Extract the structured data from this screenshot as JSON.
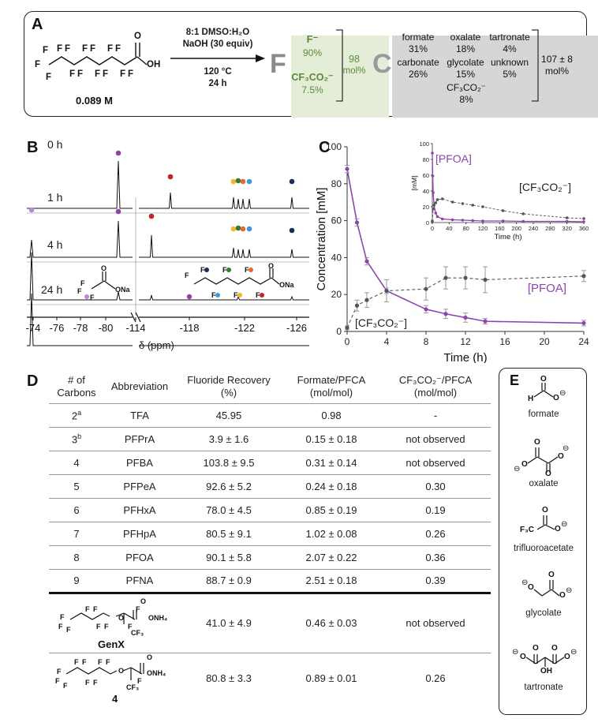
{
  "panel_a": {
    "letter": "A",
    "concentration": "0.089 M",
    "conditions": [
      "8:1 DMSO:H₂O",
      "NaOH (30 equiv)",
      "120 °C",
      "24 h"
    ],
    "f_box": {
      "symbol": "F",
      "items": [
        {
          "name": "F⁻",
          "value": "90%"
        },
        {
          "name": "CF₃CO₂⁻",
          "value": "7.5%"
        }
      ],
      "total": "98",
      "total_unit": "mol%"
    },
    "c_box": {
      "symbol": "C",
      "items": [
        {
          "name": "formate",
          "value": "31%"
        },
        {
          "name": "oxalate",
          "value": "18%"
        },
        {
          "name": "tartronate",
          "value": "4%"
        },
        {
          "name": "carbonate",
          "value": "26%"
        },
        {
          "name": "glycolate",
          "value": "15%"
        },
        {
          "name": "unknown",
          "value": "5%"
        },
        {
          "name": "CF₃CO₂⁻",
          "value": "8%"
        }
      ],
      "total": "107 ± 8",
      "total_unit": "mol%"
    }
  },
  "panel_b": {
    "letter": "B",
    "time_labels": [
      "0 h",
      "1 h",
      "4 h",
      "24 h"
    ],
    "axis_ticks": [
      "-74",
      "-76",
      "-78",
      "-80",
      "-114",
      "-118",
      "-122",
      "-126"
    ],
    "axis_label": "δ (ppm)",
    "colors": {
      "purple": "#8e44ad",
      "lilac": "#b48ad6",
      "red": "#c0212b",
      "yellow": "#f2b632",
      "green": "#2e7d32",
      "orange": "#e8672a",
      "blue": "#3a9ad9",
      "navy": "#1f2d5a"
    }
  },
  "panel_c": {
    "letter": "C",
    "chart_data": [
      {
        "type": "line",
        "xlabel": "Time (h)",
        "ylabel": "Concentration [mM]",
        "xlim": [
          0,
          24
        ],
        "ylim": [
          0,
          100
        ],
        "x_ticks": [
          "0",
          "4",
          "8",
          "12",
          "16",
          "20",
          "24"
        ],
        "y_ticks": [
          "0",
          "20",
          "40",
          "60",
          "80",
          "100"
        ],
        "series": [
          {
            "name": "[PFOA]",
            "color": "#8e44ad",
            "style": "solid",
            "x": [
              0,
              1,
              2,
              4,
              8,
              10,
              12,
              14,
              24
            ],
            "y": [
              88,
              59,
              38,
              22,
              12,
              9.5,
              7.5,
              5.5,
              4.5
            ],
            "err": [
              2,
              2,
              2,
              1.5,
              2,
              2.5,
              2.5,
              1.5,
              1.5
            ]
          },
          {
            "name": "[CF₃CO₂⁻]",
            "color": "#555555",
            "style": "dashed",
            "x": [
              0,
              1,
              2,
              4,
              8,
              10,
              12,
              14,
              24
            ],
            "y": [
              2,
              14,
              17,
              22,
              23,
              29,
              29,
              28,
              30
            ],
            "err": [
              1,
              3,
              4,
              6,
              6,
              6,
              6,
              7,
              3
            ]
          }
        ]
      },
      {
        "type": "line",
        "xlabel": "Time (h)",
        "ylabel": "[mM]",
        "xlim": [
          0,
          360
        ],
        "ylim": [
          0,
          100
        ],
        "x_ticks": [
          "0",
          "40",
          "80",
          "120",
          "160",
          "200",
          "240",
          "280",
          "320",
          "360"
        ],
        "y_ticks": [
          "0",
          "20",
          "40",
          "60",
          "80",
          "100"
        ],
        "series": [
          {
            "name": "[PFOA]",
            "color": "#8e44ad",
            "style": "solid",
            "x": [
              0,
              1,
              2,
              4,
              8,
              12,
              24,
              48,
              72,
              96,
              120,
              168,
              216,
              320,
              360
            ],
            "y": [
              88,
              59,
              38,
              22,
              12,
              7.5,
              4.5,
              3.5,
              3,
              2.5,
              2,
              2,
              1.5,
              1.5,
              1
            ]
          },
          {
            "name": "[CF₃CO₂⁻]",
            "color": "#555555",
            "style": "dashed",
            "x": [
              0,
              2,
              4,
              8,
              12,
              24,
              48,
              72,
              96,
              120,
              168,
              216,
              320,
              360
            ],
            "y": [
              2,
              17,
              22,
              25,
              29,
              30,
              26,
              24,
              22,
              20,
              15,
              11,
              6,
              5
            ]
          }
        ]
      }
    ]
  },
  "panel_d": {
    "letter": "D",
    "headers": [
      [
        "# of",
        "Carbons"
      ],
      [
        "Abbreviation"
      ],
      [
        "Fluoride Recovery",
        "(%)"
      ],
      [
        "Formate/PFCA",
        "(mol/mol)"
      ],
      [
        "CF₃CO₂⁻/PFCA",
        "(mol/mol)"
      ]
    ],
    "rows": [
      {
        "carbons": "2",
        "sup": "a",
        "abbr": "TFA",
        "fluoride": "45.95",
        "formate": "0.98",
        "cf3": "-"
      },
      {
        "carbons": "3",
        "sup": "b",
        "abbr": "PFPrA",
        "fluoride": "3.9 ± 1.6",
        "formate": "0.15 ± 0.18",
        "cf3": "not observed"
      },
      {
        "carbons": "4",
        "sup": "",
        "abbr": "PFBA",
        "fluoride": "103.8 ± 9.5",
        "formate": "0.31 ± 0.14",
        "cf3": "not observed"
      },
      {
        "carbons": "5",
        "sup": "",
        "abbr": "PFPeA",
        "fluoride": "92.6 ± 5.2",
        "formate": "0.24 ± 0.18",
        "cf3": "0.30"
      },
      {
        "carbons": "6",
        "sup": "",
        "abbr": "PFHxA",
        "fluoride": "78.0  ± 4.5",
        "formate": "0.85 ± 0.19",
        "cf3": "0.19"
      },
      {
        "carbons": "7",
        "sup": "",
        "abbr": "PFHpA",
        "fluoride": "80.5 ± 9.1",
        "formate": "1.02 ± 0.08",
        "cf3": "0.26"
      },
      {
        "carbons": "8",
        "sup": "",
        "abbr": "PFOA",
        "fluoride": "90.1 ± 5.8",
        "formate": "2.07 ± 0.22",
        "cf3": "0.36"
      },
      {
        "carbons": "9",
        "sup": "",
        "abbr": "PFNA",
        "fluoride": "88.7 ± 0.9",
        "formate": "2.51 ± 0.18",
        "cf3": "0.39"
      }
    ],
    "molecule_rows": [
      {
        "name": "GenX",
        "fluoride": "41.0 ± 4.9",
        "formate": "0.46 ± 0.03",
        "cf3": "not observed"
      },
      {
        "name": "4",
        "fluoride": "80.8  ± 3.3",
        "formate": "0.89 ± 0.01",
        "cf3": "0.26"
      }
    ]
  },
  "panel_e": {
    "letter": "E",
    "molecules": [
      "formate",
      "oxalate",
      "trifluoroacetate",
      "glycolate",
      "tartronate"
    ]
  },
  "chem_labels": {
    "F": "F",
    "OH": "OH",
    "O": "O",
    "ONa": "ONa",
    "ONH4": "ONH₄",
    "CF3": "CF₃",
    "H": "H",
    "F3C": "F₃C",
    "minus": "⊖",
    "Na": "Na"
  }
}
